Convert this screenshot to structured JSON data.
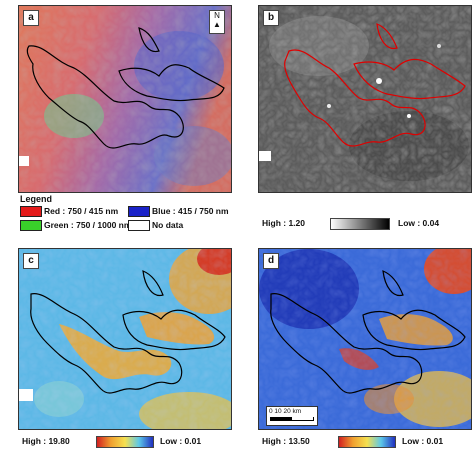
{
  "panels": {
    "a": {
      "label": "a",
      "north": "N"
    },
    "b": {
      "label": "b"
    },
    "c": {
      "label": "c"
    },
    "d": {
      "label": "d"
    }
  },
  "legend": {
    "title": "Legend",
    "items": [
      {
        "label": "Red : 750 / 415 nm",
        "color": "#e41a1a"
      },
      {
        "label": "Green : 750 / 1000 nm",
        "color": "#39d12a"
      },
      {
        "label": "Blue : 415 / 750 nm",
        "color": "#1a22c8"
      },
      {
        "label": "No data",
        "color": "#ffffff"
      }
    ]
  },
  "colorbars": {
    "b": {
      "high": "High : 1.20",
      "low": "Low : 0.04"
    },
    "c": {
      "high": "High : 19.80",
      "low": "Low : 0.01"
    },
    "d": {
      "high": "High : 13.50",
      "low": "Low : 0.01"
    }
  },
  "scalebar": {
    "label": "0  10 20 km"
  },
  "colors": {
    "outline_dark": "#000000",
    "outline_red": "#e00000"
  }
}
